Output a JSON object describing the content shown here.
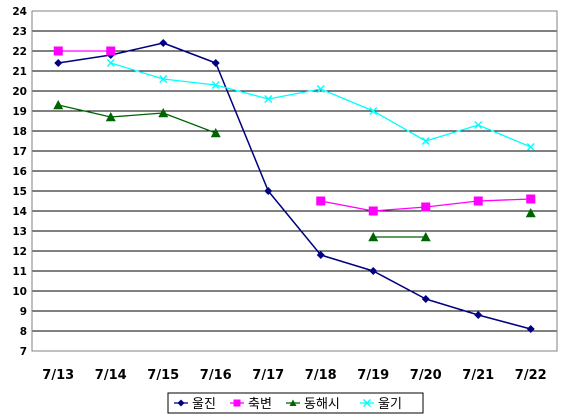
{
  "chart_data": {
    "type": "line",
    "title": "",
    "xlabel": "",
    "ylabel": "",
    "categories": [
      "7/13",
      "7/14",
      "7/15",
      "7/16",
      "7/17",
      "7/18",
      "7/19",
      "7/20",
      "7/21",
      "7/22"
    ],
    "yticks": [
      "7",
      "8",
      "9",
      "10",
      "11",
      "12",
      "13",
      "14",
      "15",
      "16",
      "17",
      "18",
      "19",
      "20",
      "21",
      "22",
      "23",
      "24"
    ],
    "ylim": [
      7,
      24
    ],
    "grid": "horizontal",
    "legend_position": "bottom",
    "series": [
      {
        "name": "울진",
        "color": "#000080",
        "marker": "diamond",
        "values": [
          21.4,
          21.8,
          22.4,
          21.4,
          15.0,
          11.8,
          11.0,
          9.6,
          8.8,
          8.1
        ]
      },
      {
        "name": "축변",
        "color": "#ff00ff",
        "marker": "square",
        "values": [
          22.0,
          22.0,
          null,
          null,
          null,
          14.5,
          14.0,
          14.2,
          14.5,
          14.6
        ]
      },
      {
        "name": "동해시",
        "color": "#006400",
        "marker": "triangle",
        "values": [
          19.3,
          18.7,
          18.9,
          17.9,
          null,
          null,
          12.7,
          12.7,
          null,
          13.9
        ]
      },
      {
        "name": "울기",
        "color": "#00ffff",
        "marker": "x",
        "values": [
          null,
          21.4,
          20.6,
          20.3,
          19.6,
          20.1,
          19.0,
          17.5,
          18.3,
          17.2
        ]
      }
    ]
  }
}
